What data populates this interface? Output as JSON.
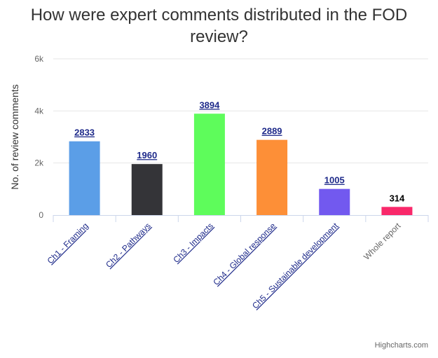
{
  "chart_data": {
    "type": "bar",
    "title": "How were expert comments distributed in the FOD review?",
    "ylabel": "No. of review comments",
    "xlabel": "",
    "ylim": [
      0,
      6000
    ],
    "yticks": [
      {
        "value": 0,
        "label": "0"
      },
      {
        "value": 2000,
        "label": "2k"
      },
      {
        "value": 4000,
        "label": "4k"
      },
      {
        "value": 6000,
        "label": "6k"
      }
    ],
    "grid": true,
    "categories": [
      {
        "label": "Ch1 - Framing",
        "value": 2833,
        "color": "#5b9ee7",
        "link": true
      },
      {
        "label": "Ch2 - Pathways",
        "value": 1960,
        "color": "#343438",
        "link": true
      },
      {
        "label": "Ch3 - Impacts",
        "value": 3894,
        "color": "#5efc5b",
        "link": true
      },
      {
        "label": "Ch4 - Global response",
        "value": 2889,
        "color": "#fd8f37",
        "link": true
      },
      {
        "label": "Ch5 - Sustainable development",
        "value": 1005,
        "color": "#7259ef",
        "link": true
      },
      {
        "label": "Whole report",
        "value": 314,
        "color": "#f9286a",
        "link": false
      }
    ]
  },
  "credits": "Highcharts.com"
}
